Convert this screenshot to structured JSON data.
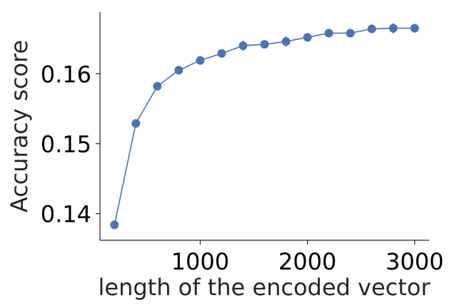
{
  "chart_data": {
    "type": "line",
    "xlabel": "length of the encoded vector",
    "ylabel": "Accuracy score",
    "xlim": [
      65,
      3135
    ],
    "ylim": [
      0.1362,
      0.1688
    ],
    "xticks": [
      1000,
      2000,
      3000
    ],
    "xtick_labels": [
      "1000",
      "2000",
      "3000"
    ],
    "yticks": [
      0.14,
      0.15,
      0.16
    ],
    "ytick_labels": [
      "0.14",
      "0.15",
      "0.16"
    ],
    "grid": false,
    "legend": "none",
    "series": [
      {
        "color": "#4c72b0",
        "x": [
          200,
          400,
          600,
          800,
          1000,
          1200,
          1400,
          1600,
          1800,
          2000,
          2200,
          2400,
          2600,
          2800,
          3000
        ],
        "y": [
          0.1384,
          0.1529,
          0.1582,
          0.1605,
          0.1619,
          0.1629,
          0.164,
          0.1642,
          0.1646,
          0.1652,
          0.1658,
          0.1658,
          0.1664,
          0.1665,
          0.1665
        ],
        "error": [
          0.0004,
          0.0004,
          0.0005,
          0.0005,
          0.0006,
          0.0005,
          0.0007,
          0.0005,
          0.0007,
          0.0006,
          0.0006,
          0.0006,
          0.0006,
          0.0007,
          0.0006
        ]
      }
    ]
  }
}
